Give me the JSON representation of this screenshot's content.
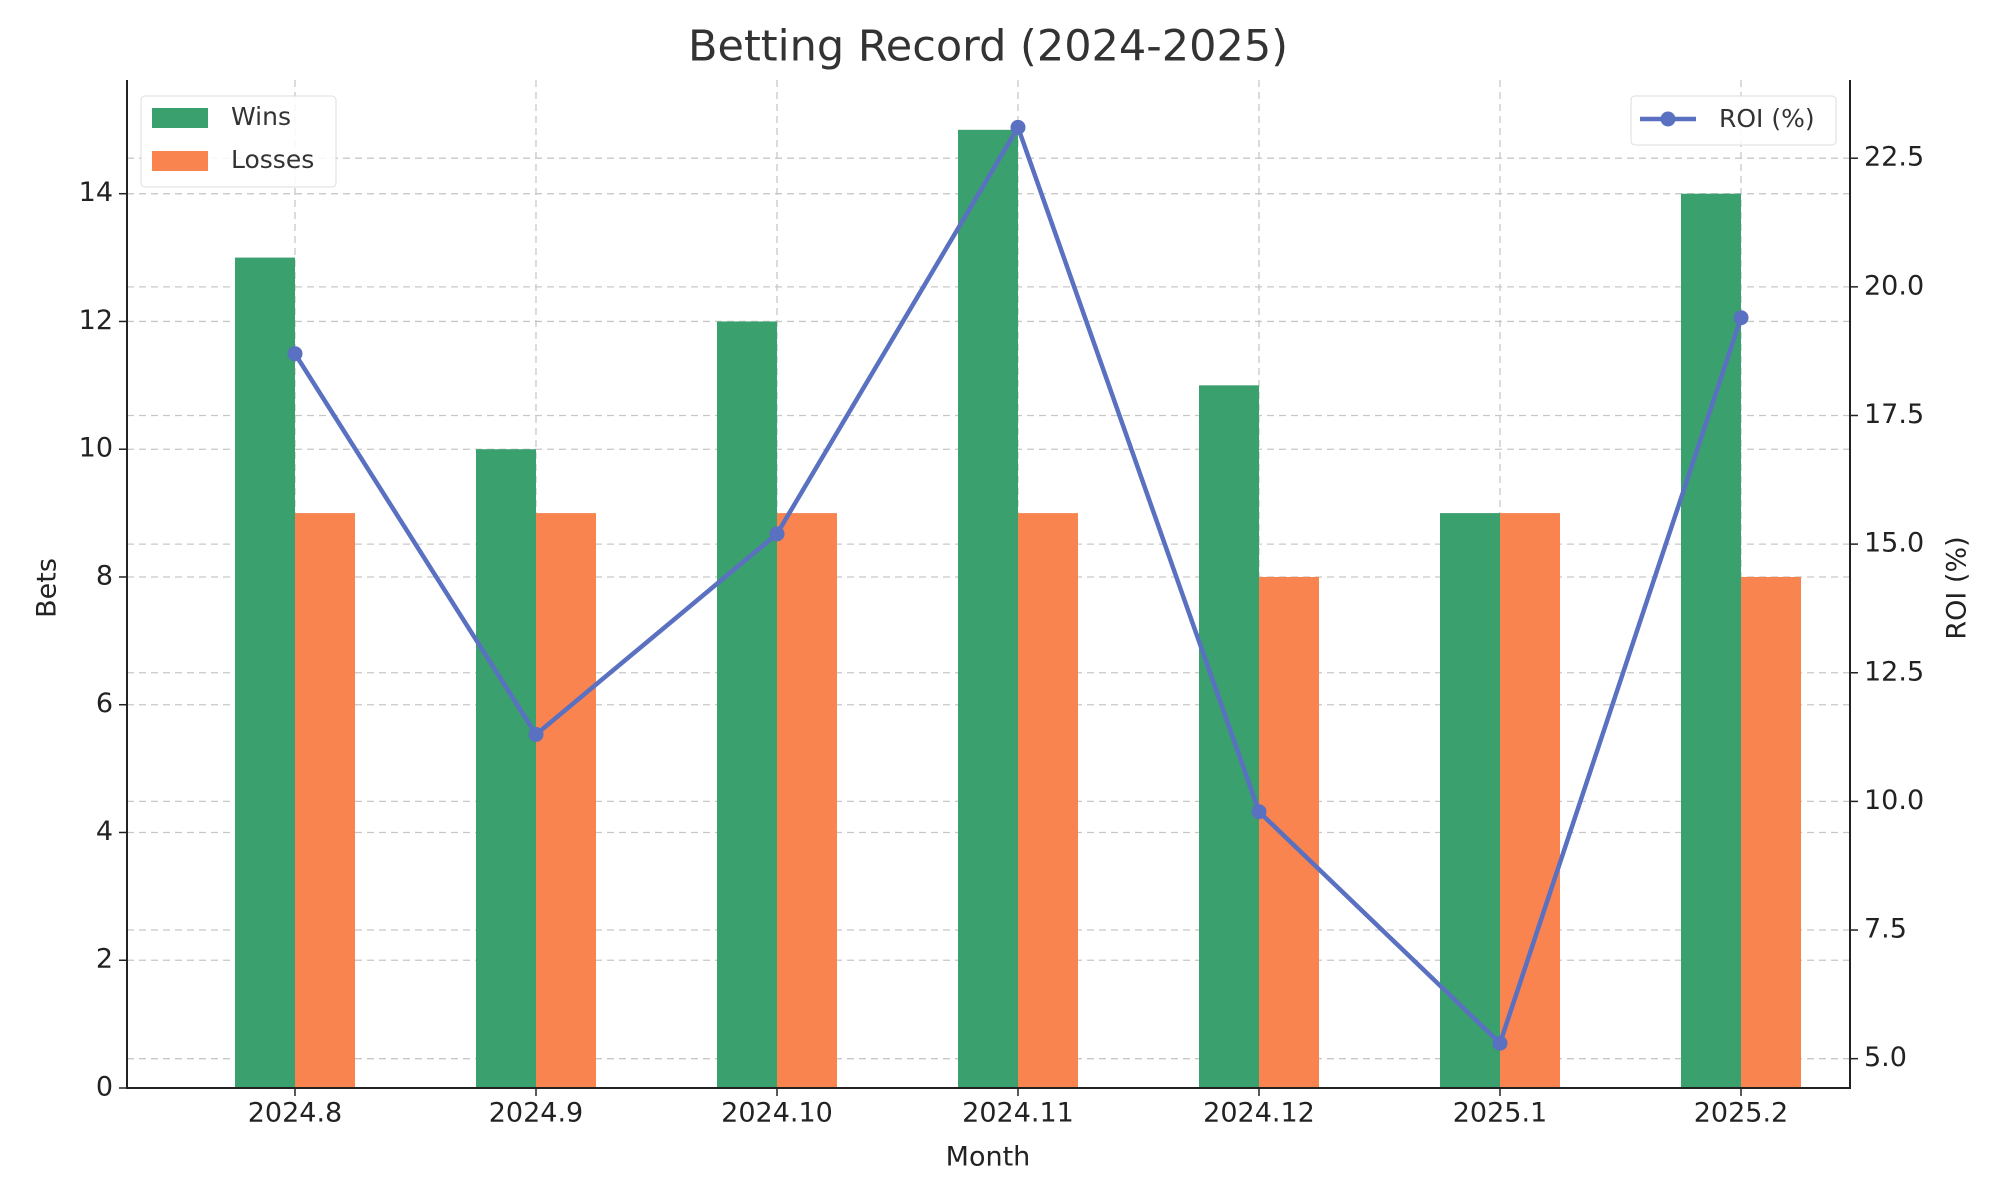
{
  "chart_data": {
    "type": "bar",
    "title": "Betting Record (2024-2025)",
    "x_label": "Month",
    "y_label": "Bets",
    "y2_label": "ROI (%)",
    "categories": [
      "2024.8",
      "2024.9",
      "2024.10",
      "2024.11",
      "2024.12",
      "2025.1",
      "2025.2"
    ],
    "series": [
      {
        "name": "Wins",
        "color": "#3aa06e",
        "values": [
          13,
          10,
          12,
          15,
          11,
          9,
          14
        ]
      },
      {
        "name": "Losses",
        "color": "#f9844f",
        "values": [
          9,
          9,
          9,
          9,
          8,
          9,
          8
        ]
      },
      {
        "name": "ROI (%)",
        "color": "#5a70c0",
        "type": "line",
        "axis": "y2",
        "values": [
          18.7,
          11.3,
          15.2,
          23.1,
          9.8,
          5.3,
          19.4
        ]
      }
    ],
    "ylim": [
      0,
      15.78
    ],
    "yticks": [
      0,
      2,
      4,
      6,
      8,
      10,
      12,
      14
    ],
    "y2lim": [
      4.43,
      24.02
    ],
    "y2ticks": [
      {
        "value": 5,
        "label": "5.0"
      },
      7.5,
      {
        "value": 10,
        "label": "10.0"
      },
      12.5,
      {
        "value": 15,
        "label": "15.0"
      },
      17.5,
      {
        "value": 20,
        "label": "20.0"
      },
      22.5
    ],
    "grid": true
  }
}
